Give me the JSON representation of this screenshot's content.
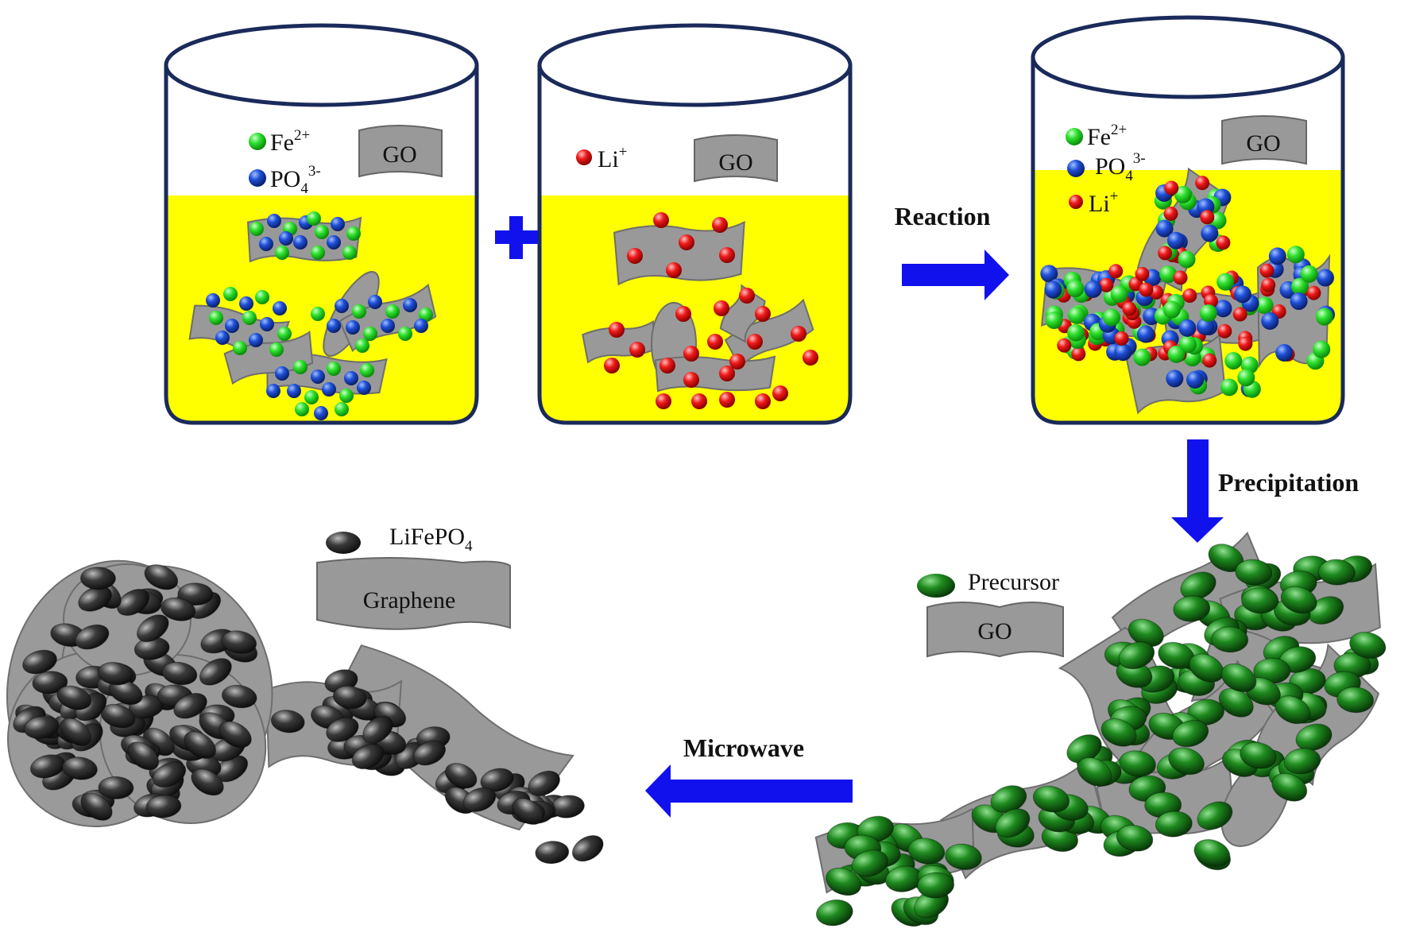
{
  "labels": {
    "fe": "Fe",
    "fe_sup": "2+",
    "po": "PO",
    "po_sub": "4",
    "po_sup": "3-",
    "li": "Li",
    "li_sup": "+",
    "go": "GO",
    "plus": "+",
    "reaction": "Reaction",
    "precipitation": "Precipitation",
    "microwave": "Microwave",
    "precursor": "Precursor",
    "lifepo": "LiFePO",
    "lifepo_sub": "4",
    "graphene": "Graphene"
  },
  "colors": {
    "solution": "#ffff00",
    "beaker_outline": "#1a2a5a",
    "sheet": "#999999",
    "sheet_light": "#b5b5b5",
    "fe": "#22dd22",
    "po4": "#1a44cc",
    "li": "#ee1111",
    "arrow": "#1111ee",
    "precursor": "#1e7a1e",
    "lifepo4": "#333333"
  }
}
